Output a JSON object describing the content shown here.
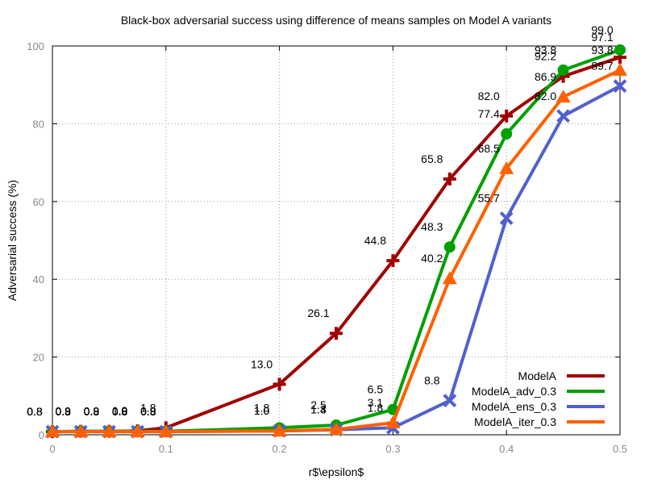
{
  "chart_data": {
    "type": "line",
    "title": "Black-box adversarial success using difference of means samples on Model A variants",
    "xlabel": "r$\\epsilon$",
    "ylabel": "Adversarial success (%)",
    "xlim": [
      0,
      0.5
    ],
    "ylim": [
      0,
      100
    ],
    "x_ticks": [
      "0",
      "0.1",
      "0.2",
      "0.3",
      "0.4",
      "0.5"
    ],
    "y_ticks": [
      "0",
      "20",
      "40",
      "60",
      "80",
      "100"
    ],
    "grid": true,
    "legend_position": "bottom-right",
    "x": [
      0,
      0.025,
      0.05,
      0.075,
      0.1,
      0.2,
      0.25,
      0.3,
      0.35,
      0.4,
      0.45,
      0.5
    ],
    "series": [
      {
        "name": "ModelA",
        "color": "#a00000",
        "marker": "plus",
        "values": [
          0.8,
          0.9,
          0.9,
          1.0,
          1.8,
          13.0,
          26.1,
          44.8,
          65.8,
          82.0,
          92.2,
          97.1
        ],
        "labels": [
          "0.8",
          "0.9",
          "0.9",
          "1.0",
          "1.8",
          "13.0",
          "26.1",
          "44.8",
          "65.8",
          "82.0",
          "92.2",
          "97.1"
        ]
      },
      {
        "name": "ModelA_adv_0.3",
        "color": "#00a000",
        "marker": "circle",
        "values": [
          0.8,
          0.9,
          0.9,
          0.9,
          0.9,
          1.8,
          2.5,
          6.5,
          48.3,
          77.4,
          93.8,
          99.0
        ],
        "labels": [
          "0.8",
          "0.9",
          "0.9",
          "0.9",
          "0.9",
          "1.8",
          "2.5",
          "6.5",
          "48.3",
          "77.4",
          "93.8",
          "99.0"
        ]
      },
      {
        "name": "ModelA_ens_0.3",
        "color": "#5060d0",
        "marker": "cross",
        "values": [
          0.8,
          0.8,
          0.8,
          0.8,
          0.8,
          1.0,
          1.3,
          1.8,
          8.8,
          55.7,
          82.0,
          89.7
        ],
        "labels": [
          "0.8",
          "0.8",
          "0.8",
          "0.8",
          "0.8",
          "1.0",
          "1.3",
          "1.8",
          "8.8",
          "55.7",
          "82.0",
          "89.7"
        ]
      },
      {
        "name": "ModelA_iter_0.3",
        "color": "#ff6000",
        "marker": "triangle",
        "values": [
          0.8,
          0.8,
          0.8,
          0.8,
          0.8,
          1.0,
          1.4,
          3.1,
          40.2,
          68.5,
          86.9,
          93.8
        ],
        "labels": [
          "0.8",
          "0.8",
          "0.8",
          "0.8",
          "0.8",
          "1.0",
          "1.4",
          "3.1",
          "40.2",
          "68.5",
          "86.9",
          "93.8"
        ]
      }
    ]
  }
}
